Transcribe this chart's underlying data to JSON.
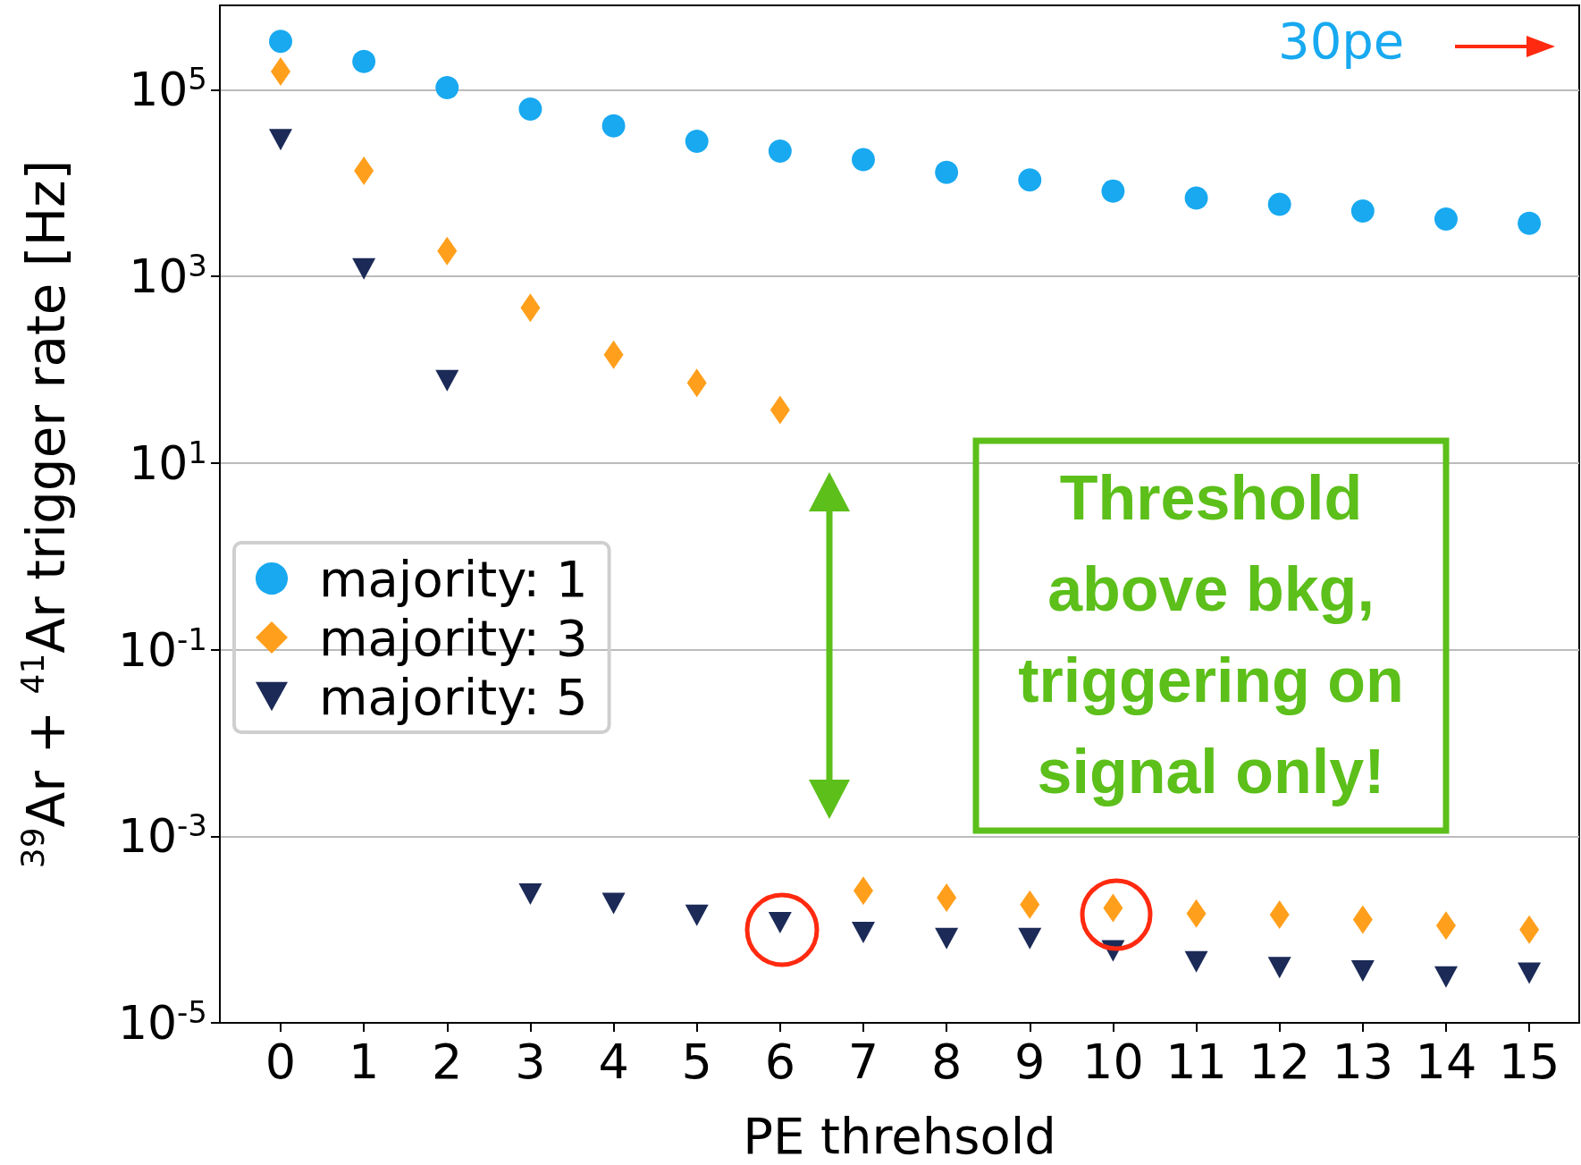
{
  "chart_data": {
    "type": "scatter",
    "xlabel": "PE threhsold",
    "ylabel": "$^{39}$Ar + $^{41}$Ar trigger rate [Hz]",
    "x": [
      0,
      1,
      2,
      3,
      4,
      5,
      6,
      7,
      8,
      9,
      10,
      11,
      12,
      13,
      14,
      15
    ],
    "series": [
      {
        "name": "majority: 1",
        "color": "#18a9f0",
        "marker": "circle",
        "values": [
          330000,
          200000,
          105000,
          62000,
          41000,
          28000,
          22000,
          17800,
          13000,
          10800,
          8200,
          6900,
          5900,
          5000,
          4100,
          3700
        ]
      },
      {
        "name": "majority: 3",
        "color": "#ff9f1c",
        "marker": "diamond",
        "values": [
          156000,
          13500,
          1870,
          460,
          144,
          72,
          37,
          0.00026,
          0.00022,
          0.000185,
          0.00017,
          0.000148,
          0.000144,
          0.000128,
          0.00011,
          0.0001
        ]
      },
      {
        "name": "majority: 5",
        "color": "#1b2a57",
        "marker": "triangle",
        "values": [
          29000,
          1200,
          76,
          0.00024,
          0.00019,
          0.000142,
          0.000118,
          9.3e-05,
          8e-05,
          8e-05,
          5.9e-05,
          4.5e-05,
          3.9e-05,
          3.6e-05,
          3.1e-05,
          3.4e-05
        ]
      }
    ],
    "log": "y",
    "ylim": [
      1e-05,
      800000
    ],
    "yticks": [
      {
        "value": 1e-05,
        "label": "10$^{-5}$"
      },
      {
        "value": 0.001,
        "label": "10$^{-3}$"
      },
      {
        "value": 0.1,
        "label": "10$^{-1}$"
      },
      {
        "value": 10,
        "label": "10$^{1}$"
      },
      {
        "value": 1000,
        "label": "10$^{3}$"
      },
      {
        "value": 100000,
        "label": "10$^{5}$"
      }
    ],
    "xlim": [
      -0.73,
      15.6
    ],
    "xticks": [
      0,
      1,
      2,
      3,
      4,
      5,
      6,
      7,
      8,
      9,
      10,
      11,
      12,
      13,
      14,
      15
    ],
    "grid": "y",
    "legend": "left",
    "annotations": [
      "30pe",
      "Threshold above bkg, triggering on signal only!"
    ]
  }
}
